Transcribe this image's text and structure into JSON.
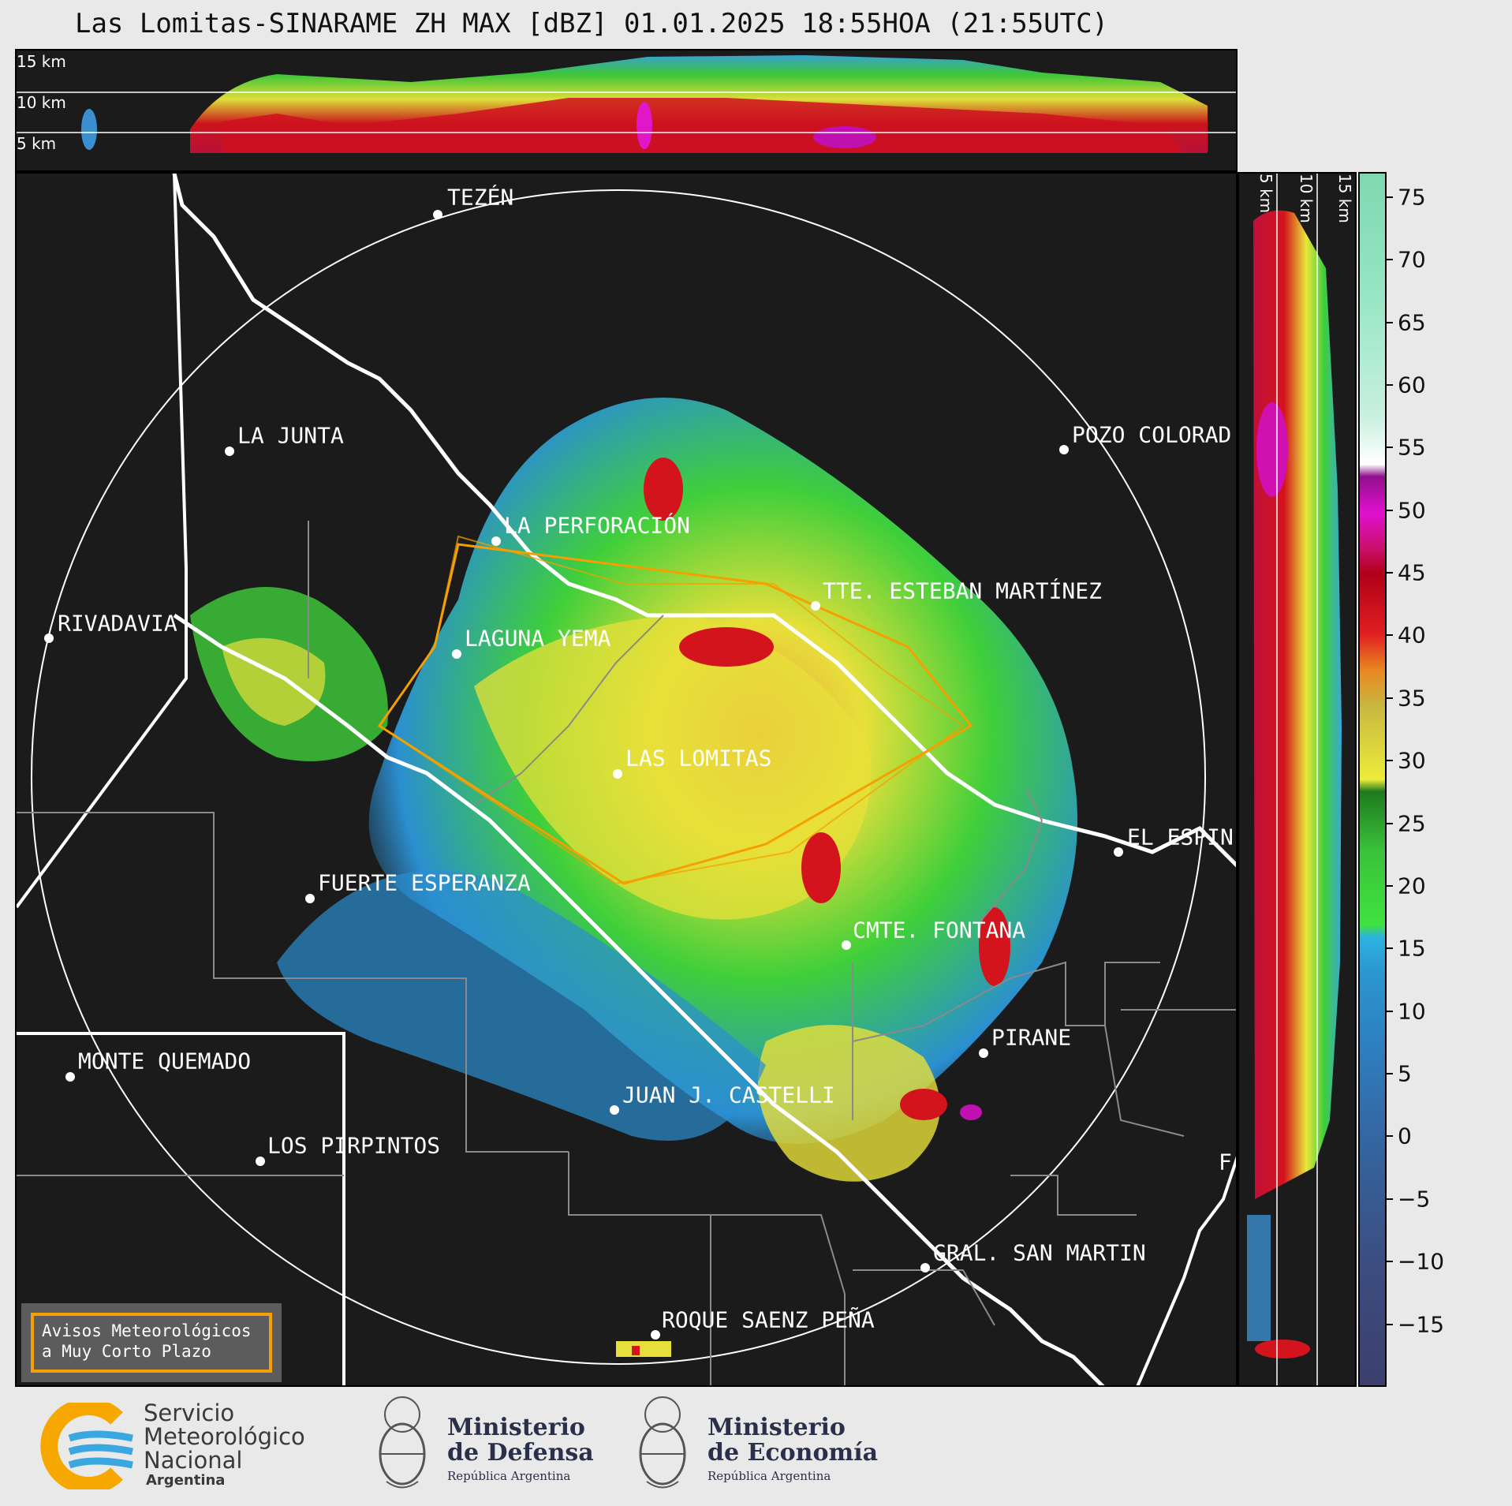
{
  "title": "Las Lomitas-SINARAME ZH MAX [dBZ] 01.01.2025 18:55HOA (21:55UTC)",
  "top_panel": {
    "altitude_labels": [
      "15 km",
      "10 km",
      "5 km"
    ]
  },
  "right_panel": {
    "altitude_labels": [
      "5 km",
      "10 km",
      "15 km"
    ]
  },
  "colorbar": {
    "unit": "dBZ",
    "ticks": [
      "75",
      "70",
      "65",
      "60",
      "55",
      "50",
      "45",
      "40",
      "35",
      "30",
      "25",
      "20",
      "15",
      "10",
      "5",
      "0",
      "−5",
      "−10",
      "−15"
    ],
    "range": [
      -20,
      77
    ]
  },
  "cities": [
    {
      "name": "TEZÉN"
    },
    {
      "name": "LA JUNTA"
    },
    {
      "name": "POZO COLORAD"
    },
    {
      "name": "LA PERFORACIÓN"
    },
    {
      "name": "TTE. ESTEBAN MARTÍNEZ"
    },
    {
      "name": "RIVADAVIA"
    },
    {
      "name": "LAGUNA YEMA"
    },
    {
      "name": "LAS LOMITAS"
    },
    {
      "name": "EL ESPIN"
    },
    {
      "name": "FUERTE ESPERANZA"
    },
    {
      "name": "CMTE. FONTANA"
    },
    {
      "name": "PIRANE"
    },
    {
      "name": "MONTE QUEMADO"
    },
    {
      "name": "JUAN J. CASTELLI"
    },
    {
      "name": "LOS PIRPINTOS"
    },
    {
      "name": "GRAL. SAN MARTIN"
    },
    {
      "name": "ROQUE SAENZ PEÑA"
    },
    {
      "name": "F"
    }
  ],
  "warning_box": {
    "line1": "Avisos Meteorológicos",
    "line2": "a Muy Corto Plazo"
  },
  "logos": {
    "smn": {
      "line1": "Servicio",
      "line2": "Meteorológico",
      "line3": "Nacional",
      "line4": "Argentina"
    },
    "defensa": {
      "line1": "Ministerio",
      "line2": "de Defensa",
      "line3": "República Argentina"
    },
    "economia": {
      "line1": "Ministerio",
      "line2": "de Economía",
      "line3": "República Argentina"
    }
  },
  "colors": {
    "background": "#1b1b1b",
    "warning_polygon": "#f5a000",
    "border": "#ffffff"
  }
}
